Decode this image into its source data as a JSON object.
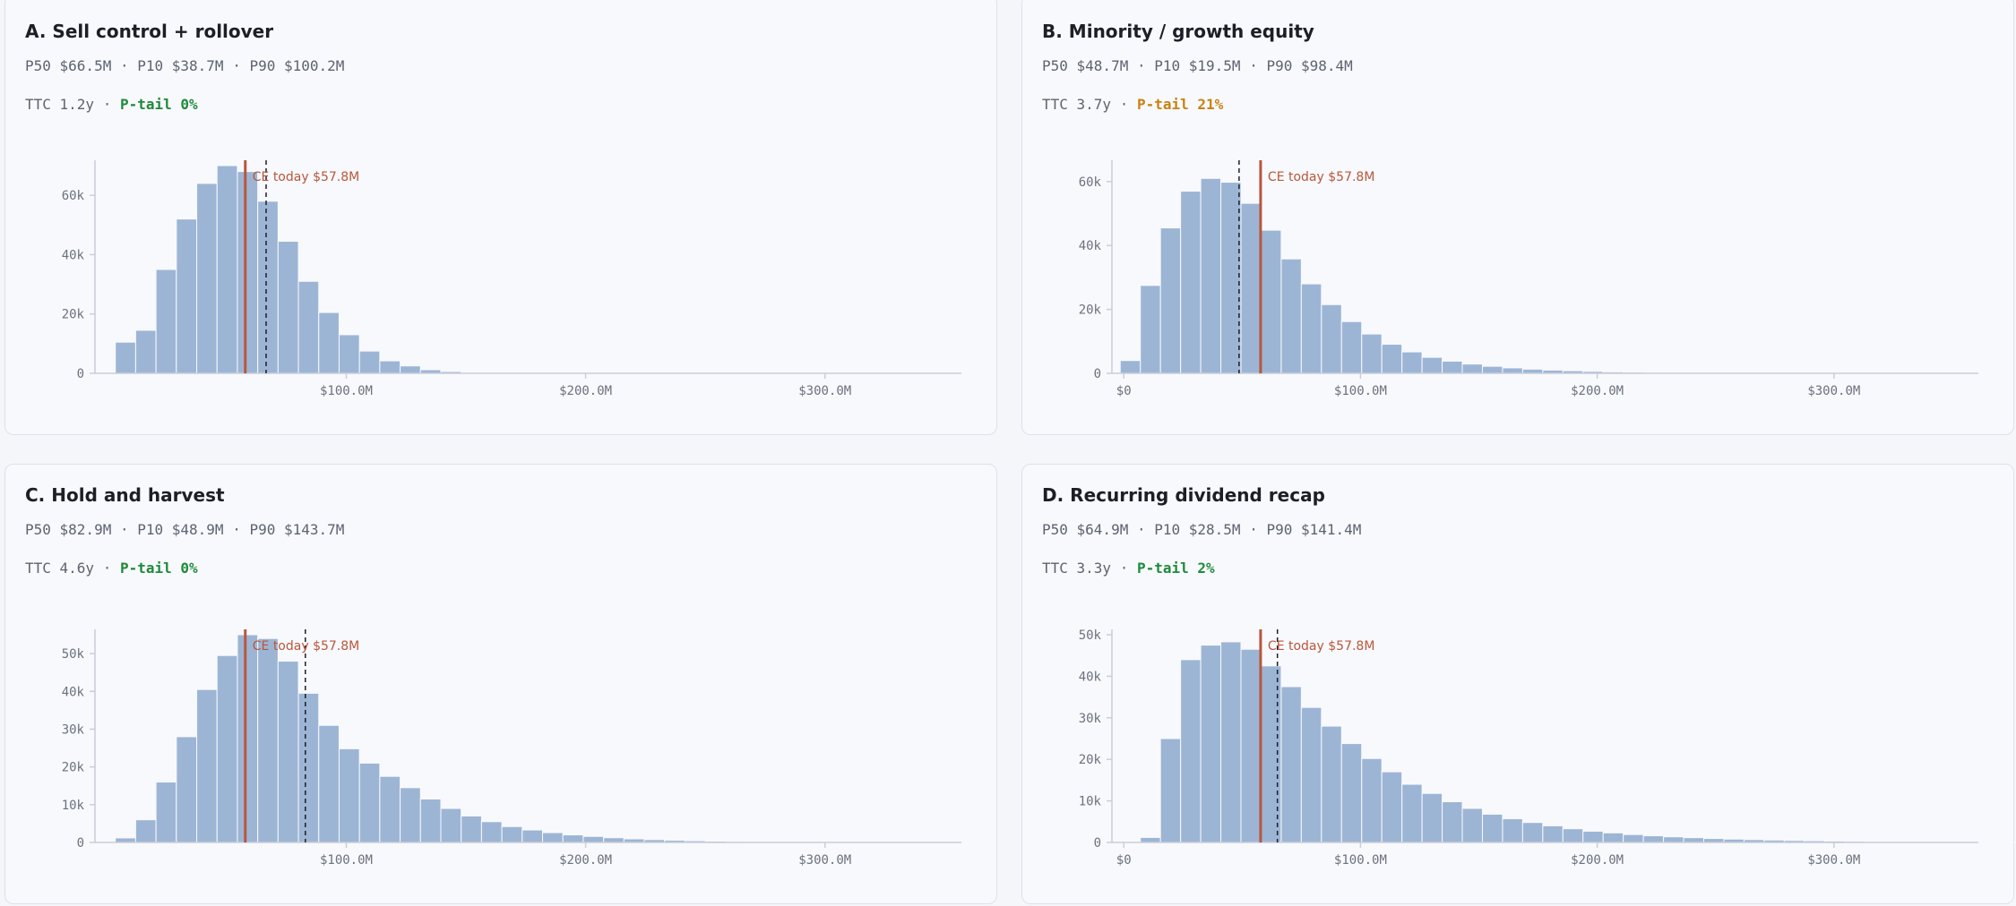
{
  "colors": {
    "bar": "#9db5d5",
    "bar_edge": "#f8f9fd",
    "axis": "#c9ced8",
    "ce_line": "#b8573a",
    "p50_line": "#1c1f26",
    "ptail_good": "#1f8a3b",
    "ptail_warn": "#c9820f"
  },
  "ce_label": "CE today $57.8M",
  "chart_data": [
    {
      "type": "bar",
      "title": "A. Sell control + rollover",
      "stats": "P50 $66.5M · P10 $38.7M · P90 $100.2M",
      "ttc": "TTC 1.2y",
      "sep": " · ",
      "ptail_label": "P-tail 0%",
      "ptail_status": "good",
      "ce_value": 57.8,
      "p50_value": 66.5,
      "ylim": [
        0,
        70000
      ],
      "yticks": [
        0,
        20000,
        40000,
        60000
      ],
      "ytick_labels": [
        "0",
        "20k",
        "40k",
        "60k"
      ],
      "xlim": [
        -5,
        357
      ],
      "xticks": [
        100,
        200,
        300
      ],
      "xtick_labels": [
        "$100.0M",
        "$200.0M",
        "$300.0M"
      ],
      "bin_start": 3.5,
      "bin_width": 8.5,
      "values": [
        10500,
        14500,
        35000,
        52000,
        64000,
        70000,
        68000,
        58000,
        44500,
        31000,
        20500,
        13000,
        7500,
        4200,
        2500,
        1200,
        600,
        300,
        150,
        80,
        40,
        20
      ]
    },
    {
      "type": "bar",
      "title": "B. Minority / growth equity",
      "stats": "P50 $48.7M · P10 $19.5M · P90 $98.4M",
      "ttc": "TTC 3.7y",
      "sep": " · ",
      "ptail_label": "P-tail 21%",
      "ptail_status": "warn",
      "ce_value": 57.8,
      "p50_value": 48.7,
      "ylim": [
        0,
        65000
      ],
      "yticks": [
        0,
        20000,
        40000,
        60000
      ],
      "ytick_labels": [
        "0",
        "20k",
        "40k",
        "60k"
      ],
      "xlim": [
        -5,
        361
      ],
      "xticks": [
        0,
        100,
        200,
        300
      ],
      "xtick_labels": [
        "$0",
        "$100.0M",
        "$200.0M",
        "$300.0M"
      ],
      "bin_start": -1.5,
      "bin_width": 8.5,
      "values": [
        4000,
        27500,
        45500,
        57000,
        61000,
        59800,
        53200,
        44800,
        35800,
        28000,
        21500,
        16200,
        12300,
        9100,
        6700,
        5000,
        3800,
        2900,
        2200,
        1700,
        1300,
        1000,
        800,
        600,
        450,
        350,
        270,
        200,
        150,
        110,
        80,
        60,
        45,
        30,
        20
      ]
    },
    {
      "type": "bar",
      "title": "C. Hold and harvest",
      "stats": "P50 $82.9M · P10 $48.9M · P90 $143.7M",
      "ttc": "TTC 4.6y",
      "sep": " · ",
      "ptail_label": "P-tail 0%",
      "ptail_status": "good",
      "ce_value": 57.8,
      "p50_value": 82.9,
      "ylim": [
        0,
        55000
      ],
      "yticks": [
        0,
        10000,
        20000,
        30000,
        40000,
        50000
      ],
      "ytick_labels": [
        "0",
        "10k",
        "20k",
        "30k",
        "40k",
        "50k"
      ],
      "xlim": [
        -5,
        357
      ],
      "xticks": [
        100,
        200,
        300
      ],
      "xtick_labels": [
        "$100.0M",
        "$200.0M",
        "$300.0M"
      ],
      "bin_start": 3.5,
      "bin_width": 8.5,
      "values": [
        1200,
        6000,
        16000,
        28000,
        40500,
        49500,
        55000,
        54000,
        48000,
        39500,
        31000,
        24800,
        21000,
        17500,
        14500,
        11500,
        9000,
        7000,
        5500,
        4200,
        3300,
        2600,
        2000,
        1600,
        1250,
        950,
        750,
        580,
        450,
        340,
        260,
        200,
        150,
        110,
        80,
        60,
        40,
        30
      ]
    },
    {
      "type": "bar",
      "title": "D. Recurring dividend recap",
      "stats": "P50 $64.9M · P10 $28.5M · P90 $141.4M",
      "ttc": "TTC 3.3y",
      "sep": " · ",
      "ptail_label": "P-tail 2%",
      "ptail_status": "good",
      "ce_value": 57.8,
      "p50_value": 64.9,
      "ylim": [
        0,
        50000
      ],
      "yticks": [
        0,
        10000,
        20000,
        30000,
        40000,
        50000
      ],
      "ytick_labels": [
        "0",
        "10k",
        "20k",
        "30k",
        "40k",
        "50k"
      ],
      "xlim": [
        -5,
        361
      ],
      "xticks": [
        0,
        100,
        200,
        300
      ],
      "xtick_labels": [
        "$0",
        "$100.0M",
        "$200.0M",
        "$300.0M"
      ],
      "bin_start": 7,
      "bin_width": 8.5,
      "values": [
        1200,
        25000,
        44000,
        47500,
        48300,
        46500,
        42500,
        37500,
        32500,
        28000,
        23800,
        20200,
        17000,
        14000,
        11800,
        9800,
        8200,
        6800,
        5700,
        4800,
        4000,
        3300,
        2700,
        2300,
        1900,
        1600,
        1350,
        1150,
        950,
        800,
        680,
        570,
        480,
        400,
        330,
        270,
        220,
        180,
        150,
        120,
        100,
        80,
        60,
        40,
        400
      ]
    }
  ]
}
